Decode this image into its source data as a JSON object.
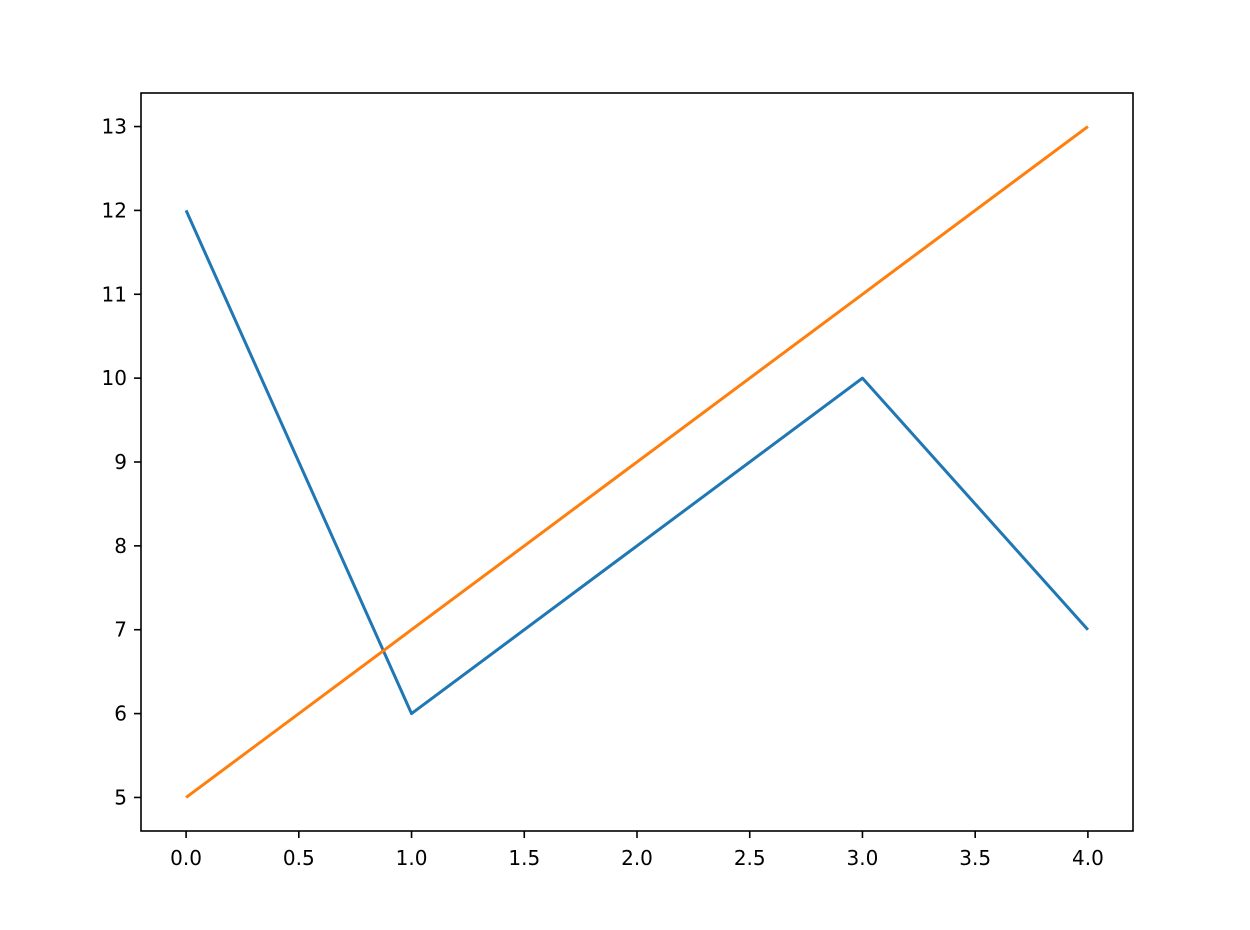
{
  "chart_data": {
    "type": "line",
    "title": "",
    "xlabel": "",
    "ylabel": "",
    "xlim": [
      -0.2,
      4.2
    ],
    "ylim": [
      4.6,
      13.4
    ],
    "grid": false,
    "x_ticks": [
      "0.0",
      "0.5",
      "1.0",
      "1.5",
      "2.0",
      "2.5",
      "3.0",
      "3.5",
      "4.0"
    ],
    "y_ticks": [
      "5",
      "6",
      "7",
      "8",
      "9",
      "10",
      "11",
      "12",
      "13"
    ],
    "series": [
      {
        "color": "#1f77b4",
        "x": [
          0,
          1,
          1.95,
          3,
          4
        ],
        "y": [
          12,
          6,
          7.9,
          10,
          7
        ]
      },
      {
        "color": "#ff7f0e",
        "x": [
          0,
          1,
          1.95,
          3,
          4
        ],
        "y": [
          5,
          7,
          8.9,
          11,
          13
        ]
      }
    ]
  }
}
